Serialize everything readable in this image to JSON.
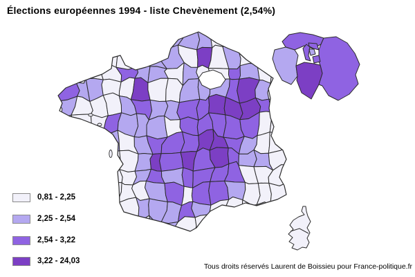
{
  "title": "Élections européennes 1994 - liste Chevènement (2,54%)",
  "footer": {
    "credit": "Tous droits réservés Laurent de Boissieu pour France-politique.fr"
  },
  "legend": {
    "classes": [
      {
        "label": "0,81 - 2,25",
        "color": "#f2f1fa"
      },
      {
        "label": "2,25 - 2,54",
        "color": "#b4a8f0"
      },
      {
        "label": "2,54 - 3,22",
        "color": "#8f63e2"
      },
      {
        "label": "3,22 - 24,03",
        "color": "#7c3fc4"
      }
    ],
    "swatch_border_color": "#8a8a8a"
  },
  "map": {
    "type": "choropleth",
    "outline_color": "#2b2b2b",
    "idf_placeholder_fill": "#ffffff",
    "grid": {
      "cells": [
        "111111122211111",
        "111111221412121",
        "111132212113211",
        "322114112223421",
        "211123223344431",
        "111322213333311",
        "111212333443211",
        "111112434343221",
        "111112323333111",
        "111111231332111",
        "111112223211111",
        "111111221111111"
      ]
    },
    "corsica": {
      "haute_corse_category": 1,
      "corse_du_sud_category": 1
    },
    "inset": {
      "regions": [
        {
          "name": "val-doise",
          "category": 3
        },
        {
          "name": "yvelines",
          "category": 2
        },
        {
          "name": "seine-et-marne",
          "category": 3
        },
        {
          "name": "essonne",
          "category": 4
        },
        {
          "name": "hauts-de-seine",
          "category": 3
        },
        {
          "name": "seine-saint-denis",
          "category": 3
        },
        {
          "name": "val-de-marne",
          "category": 3
        },
        {
          "name": "paris",
          "category": 2
        }
      ]
    }
  }
}
